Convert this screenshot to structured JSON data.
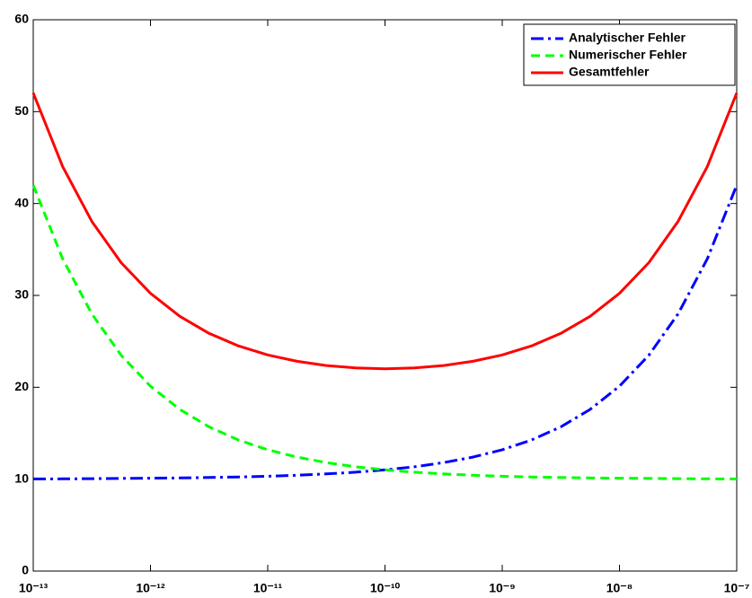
{
  "chart_data": {
    "type": "line",
    "log_x": true,
    "x": [
      1e-13,
      1.78e-13,
      3.16e-13,
      5.62e-13,
      1e-12,
      1.78e-12,
      3.16e-12,
      5.62e-12,
      1e-11,
      1.78e-11,
      3.16e-11,
      5.62e-11,
      1e-10,
      1.78e-10,
      3.16e-10,
      5.62e-10,
      1e-09,
      1.78e-09,
      3.16e-09,
      5.62e-09,
      1e-08,
      1.78e-08,
      3.16e-08,
      5.62e-08,
      1e-07
    ],
    "series": [
      {
        "name": "Analytischer Fehler",
        "color": "#0000ff",
        "dash": "14 5 3 5",
        "values": [
          10.03,
          10.04,
          10.06,
          10.08,
          10.1,
          10.13,
          10.18,
          10.24,
          10.32,
          10.43,
          10.57,
          10.76,
          11.01,
          11.35,
          11.8,
          12.4,
          13.2,
          14.27,
          15.69,
          17.59,
          20.12,
          23.49,
          27.99,
          33.99,
          42
        ]
      },
      {
        "name": "Numerischer Fehler",
        "color": "#00ff00",
        "dash": "10 6",
        "values": [
          42,
          33.99,
          27.99,
          23.49,
          20.12,
          17.59,
          15.69,
          14.27,
          13.2,
          12.4,
          11.8,
          11.35,
          11.01,
          10.76,
          10.57,
          10.43,
          10.32,
          10.24,
          10.18,
          10.13,
          10.1,
          10.08,
          10.06,
          10.04,
          10.03
        ]
      },
      {
        "name": "Gesamtfehler",
        "color": "#ff0000",
        "dash": "none",
        "values": [
          52.03,
          44.03,
          38.05,
          33.57,
          30.22,
          27.72,
          25.87,
          24.51,
          23.52,
          22.83,
          22.37,
          22.11,
          22.02,
          22.11,
          22.37,
          22.83,
          23.52,
          24.51,
          25.87,
          27.72,
          30.22,
          33.57,
          38.05,
          44.03,
          52.03
        ]
      }
    ],
    "xlim": [
      1e-13,
      1e-07
    ],
    "xticks": [
      {
        "value": 1e-13,
        "label": "10⁻¹³"
      },
      {
        "value": 1e-12,
        "label": "10⁻¹²"
      },
      {
        "value": 1e-11,
        "label": "10⁻¹¹"
      },
      {
        "value": 1e-10,
        "label": "10⁻¹⁰"
      },
      {
        "value": 1e-09,
        "label": "10⁻⁹"
      },
      {
        "value": 1e-08,
        "label": "10⁻⁸"
      },
      {
        "value": 1e-07,
        "label": "10⁻⁷"
      }
    ],
    "ylim": [
      0,
      60
    ],
    "yticks": [
      0,
      10,
      20,
      30,
      40,
      50,
      60
    ],
    "legend": "upper-right"
  }
}
